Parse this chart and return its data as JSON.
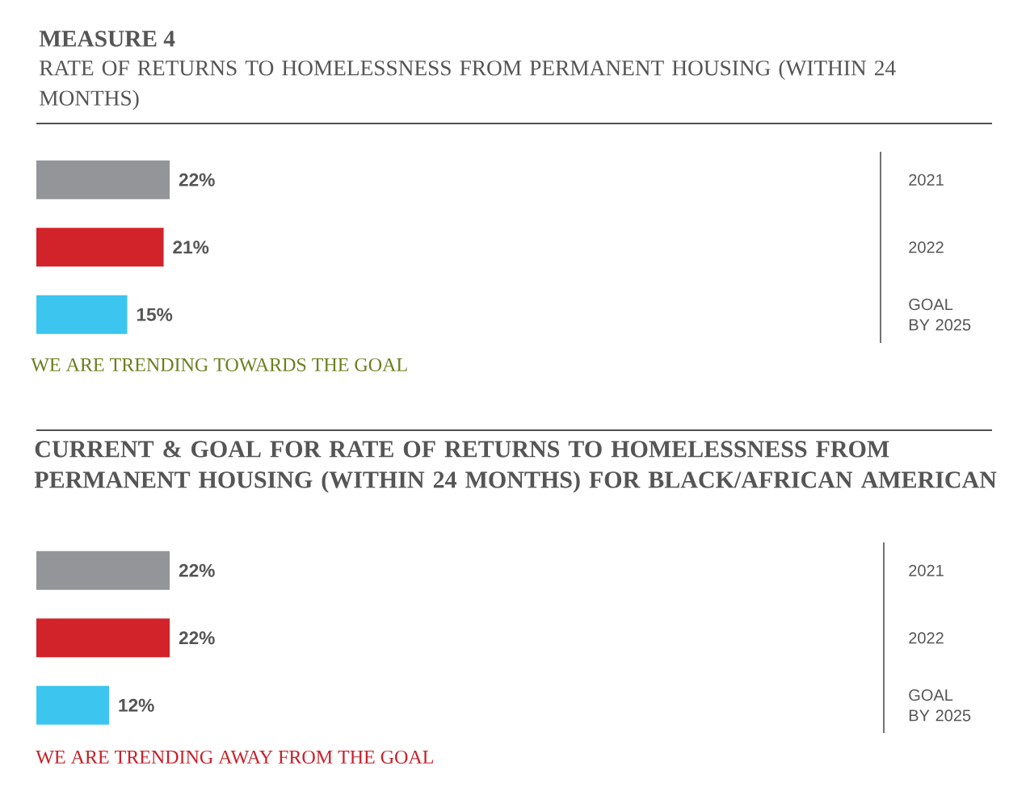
{
  "chart_data": [
    {
      "type": "bar",
      "orientation": "horizontal",
      "title": "MEASURE 4",
      "subtitle": "RATE OF RETURNS TO HOMELESSNESS FROM PERMANENT HOUSING (WITHIN 24 MONTHS)",
      "categories": [
        "2021",
        "2022",
        "GOAL BY 2025"
      ],
      "values": [
        22,
        21,
        15
      ],
      "value_labels": [
        "22%",
        "21%",
        "15%"
      ],
      "colors": [
        "#939598",
        "#d2232a",
        "#3cc5ef"
      ],
      "annotations": [
        "WE ARE TRENDING TOWARDS THE GOAL"
      ]
    },
    {
      "type": "bar",
      "orientation": "horizontal",
      "title": "CURRENT & GOAL FOR RATE OF RETURNS TO HOMELESSNESS FROM PERMANENT HOUSING (WITHIN 24 MONTHS) FOR BLACK/AFRICAN AMERICAN",
      "categories": [
        "2021",
        "2022",
        "GOAL BY 2025"
      ],
      "values": [
        22,
        22,
        12
      ],
      "value_labels": [
        "22%",
        "22%",
        "12%"
      ],
      "colors": [
        "#939598",
        "#d2232a",
        "#3cc5ef"
      ],
      "annotations": [
        "WE ARE TRENDING AWAY FROM THE GOAL"
      ]
    }
  ]
}
